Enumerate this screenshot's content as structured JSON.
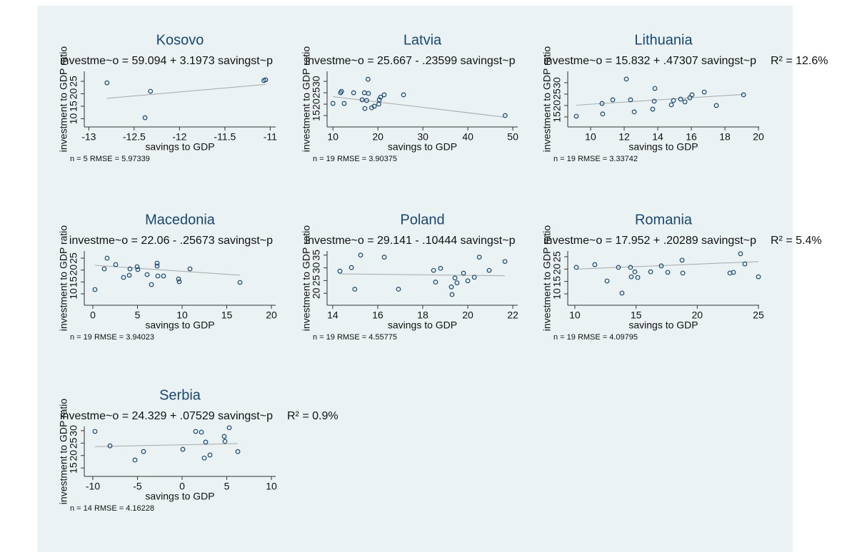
{
  "chart_data": [
    {
      "type": "scatter",
      "title": "Kosovo",
      "equation": "investme~o = 59.094 + 3.1973 savingst~p",
      "xlabel": "savings to GDP",
      "ylabel": "investment to GDP ratio",
      "note": "n = 5 RMSE = 5.97339",
      "x": [
        -12.8,
        -12.32,
        -12.38,
        -11.07,
        -11.05
      ],
      "values": [
        24.4,
        21,
        10.4,
        25.3,
        25.6
      ],
      "xlim": [
        -13.05,
        -10.94
      ],
      "ylim": [
        6.7,
        29
      ],
      "xticks": [
        -13,
        -12.5,
        -12,
        -11.5,
        -11
      ],
      "yticks": [
        10,
        15,
        20,
        25
      ],
      "fit": {
        "intercept": 59.094,
        "slope": 3.1973
      },
      "color": "#1a476f"
    },
    {
      "type": "scatter",
      "title": "Latvia",
      "equation": "investme~o = 25.667 - .23599 savingst~p",
      "xlabel": "savings to GDP",
      "ylabel": "investment to GDP ratio",
      "note": "n = 19 RMSE = 3.90375",
      "x": [
        10,
        11.7,
        11.9,
        12.5,
        14.6,
        16.5,
        17,
        17.1,
        17.5,
        17.8,
        17.9,
        18.6,
        19.2,
        20.2,
        20.3,
        20.6,
        21.4,
        25.7,
        48.3
      ],
      "values": [
        20.3,
        25,
        25.6,
        20.3,
        25,
        21.9,
        25,
        18.1,
        21.6,
        30.9,
        24.7,
        18.4,
        19.1,
        20,
        21.9,
        23.1,
        24.1,
        24.1,
        15
      ],
      "xlim": [
        8.7,
        51.1
      ],
      "ylim": [
        10,
        34.4
      ],
      "xticks": [
        10,
        20,
        30,
        40,
        50
      ],
      "yticks": [
        15,
        20,
        25,
        30
      ],
      "fit": {
        "intercept": 25.667,
        "slope": -0.23599
      },
      "color": "#1a476f"
    },
    {
      "type": "scatter",
      "title": "Lithuania",
      "equation": "investme~o = 15.832 + .47307 savingst~p",
      "r2": "R² = 12.6%",
      "xlabel": "savings to GDP",
      "ylabel": "investment to GDP ratio",
      "note": "n = 19 RMSE = 3.33742",
      "x": [
        9.15,
        10.68,
        10.72,
        11.32,
        12.13,
        12.38,
        12.6,
        13.7,
        13.79,
        13.83,
        14.81,
        14.94,
        15.36,
        15.62,
        15.91,
        16.04,
        16.77,
        17.49,
        19.11
      ],
      "values": [
        15.3,
        20.9,
        16.3,
        22.5,
        31.6,
        22.5,
        17.2,
        18.4,
        21.9,
        27.5,
        20.3,
        22.2,
        22.8,
        21.6,
        23.4,
        24.7,
        25.9,
        20,
        24.7
      ],
      "xlim": [
        8.64,
        20.04
      ],
      "ylim": [
        10.6,
        35
      ],
      "xticks": [
        10,
        12,
        14,
        16,
        18,
        20
      ],
      "yticks": [
        15,
        20,
        25,
        30
      ],
      "fit": {
        "intercept": 15.832,
        "slope": 0.47307
      },
      "color": "#1a476f"
    },
    {
      "type": "scatter",
      "title": "Macedonia",
      "equation": "investme~o = 22.06 - .25673 savingst~p",
      "xlabel": "savings to GDP",
      "ylabel": "investment to GDP ratio",
      "note": "n = 19 RMSE = 3.94023",
      "x": [
        0.24,
        1.28,
        1.6,
        2.56,
        3.44,
        4.08,
        4.16,
        4.96,
        5.04,
        6.08,
        6.56,
        7.2,
        7.2,
        7.28,
        7.92,
        9.6,
        9.68,
        10.88,
        16.48
      ],
      "values": [
        11.8,
        20.5,
        25,
        22.3,
        16.9,
        17.8,
        20.5,
        21.4,
        20.2,
        18.1,
        13.9,
        22.9,
        21.7,
        17.5,
        17.5,
        16.2,
        15.1,
        20.5,
        14.8
      ],
      "xlim": [
        -0.96,
        20.48
      ],
      "ylim": [
        5.2,
        28
      ],
      "xticks": [
        0,
        5,
        10,
        15,
        20
      ],
      "yticks": [
        10,
        15,
        20,
        25
      ],
      "fit": {
        "intercept": 22.06,
        "slope": -0.25673
      },
      "color": "#1a476f"
    },
    {
      "type": "scatter",
      "title": "Poland",
      "equation": "investme~o = 29.141 - .10444 savingst~p",
      "xlabel": "savings to GDP",
      "ylabel": "investment to GDP ratio",
      "note": "n = 19 RMSE = 4.55775",
      "x": [
        14.32,
        14.83,
        14.98,
        15.24,
        16.29,
        16.92,
        18.48,
        18.57,
        18.79,
        19.27,
        19.3,
        19.43,
        19.52,
        19.81,
        20,
        20.29,
        20.51,
        20.95,
        21.65
      ],
      "values": [
        28.7,
        30.1,
        21.6,
        35,
        34.2,
        21.6,
        29,
        24.4,
        29.8,
        22.5,
        19.5,
        26,
        24.1,
        27.9,
        24.9,
        26.3,
        34.2,
        29,
        32.5
      ],
      "xlim": [
        13.75,
        22.22
      ],
      "ylim": [
        15.3,
        36.6
      ],
      "xticks": [
        14,
        16,
        18,
        20,
        22
      ],
      "yticks": [
        20,
        25,
        30,
        35
      ],
      "fit": {
        "intercept": 29.141,
        "slope": -0.10444
      },
      "color": "#1a476f"
    },
    {
      "type": "scatter",
      "title": "Romania",
      "equation": "investme~o = 17.952 + .20289 savingst~p",
      "r2": "R² = 5.4%",
      "xlabel": "savings to GDP",
      "ylabel": "investment to GDP ratio",
      "note": "n = 19 RMSE = 4.09795",
      "x": [
        10.12,
        11.63,
        12.63,
        13.56,
        13.85,
        14.55,
        14.61,
        14.9,
        15.14,
        16.19,
        17.06,
        17.59,
        18.76,
        18.82,
        22.67,
        22.96,
        23.54,
        23.89,
        25
      ],
      "values": [
        20.7,
        21.8,
        15.2,
        20.7,
        10.3,
        20.7,
        16.9,
        18.9,
        16.6,
        18.9,
        21.3,
        18.7,
        23.6,
        18.4,
        18.4,
        18.7,
        26.2,
        22.1,
        16.9
      ],
      "xlim": [
        9.42,
        25.06
      ],
      "ylim": [
        5.4,
        27.3
      ],
      "xticks": [
        10,
        15,
        20,
        25
      ],
      "yticks": [
        10,
        15,
        20,
        25
      ],
      "fit": {
        "intercept": 17.952,
        "slope": 0.20289
      },
      "color": "#1a476f"
    },
    {
      "type": "scatter",
      "title": "Serbia",
      "equation": "investme~o = 24.329 + .07529 savingst~p",
      "r2": "R² = 0.9%",
      "xlabel": "savings to GDP",
      "ylabel": "investment to GDP ratio",
      "note": "n = 14 RMSE = 4.16228",
      "x": [
        -9.76,
        -8.08,
        -5.28,
        -4.32,
        0.08,
        1.52,
        2.16,
        2.48,
        2.64,
        3.12,
        4.72,
        4.8,
        5.28,
        6.24
      ],
      "values": [
        29.7,
        23.9,
        18.2,
        21.6,
        22.5,
        29.7,
        29.4,
        19,
        25.4,
        20.2,
        27.7,
        25.7,
        31.2,
        21.6
      ],
      "xlim": [
        -10.96,
        10.48
      ],
      "ylim": [
        11.6,
        31.7
      ],
      "xticks": [
        -10,
        -5,
        0,
        5,
        10
      ],
      "yticks": [
        15,
        20,
        25,
        30
      ],
      "fit": {
        "intercept": 24.329,
        "slope": 0.07529
      },
      "color": "#1a476f"
    }
  ]
}
